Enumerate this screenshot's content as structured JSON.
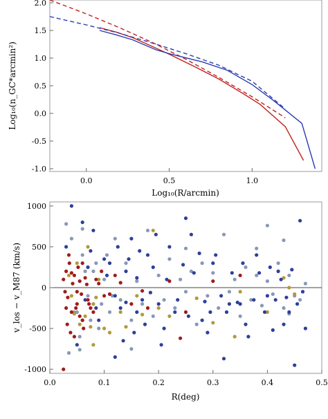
{
  "chart_data": [
    {
      "type": "line",
      "xlabel": "Log₁₀(R/arcmin)",
      "ylabel": "Log₁₀(n_GC*arcmin²)",
      "xlim": [
        -0.22,
        1.42
      ],
      "ylim": [
        -1.05,
        2.05
      ],
      "x_ticks": [
        "0.0",
        "0.5",
        "1.0"
      ],
      "x_tick_values": [
        0.0,
        0.5,
        1.0
      ],
      "y_ticks": [
        "-1.0",
        "-0.5",
        "0.0",
        "0.5",
        "1.0",
        "1.5",
        "2.0"
      ],
      "y_tick_values": [
        -1.0,
        -0.5,
        0.0,
        0.5,
        1.0,
        1.5,
        2.0
      ],
      "series": [
        {
          "color": "#c0201e",
          "style": "solid",
          "x": [
            0.08,
            0.18,
            0.28,
            0.42,
            0.5,
            0.65,
            0.8,
            0.95,
            1.05,
            1.2,
            1.31
          ],
          "y": [
            1.55,
            1.47,
            1.37,
            1.18,
            1.07,
            0.85,
            0.62,
            0.35,
            0.16,
            -0.24,
            -0.85
          ]
        },
        {
          "color": "#c0201e",
          "style": "dashed",
          "x": [
            -0.22,
            0.0,
            0.2,
            0.4,
            0.6,
            0.8,
            1.0,
            1.2
          ],
          "y": [
            2.05,
            1.8,
            1.55,
            1.28,
            0.98,
            0.65,
            0.3,
            -0.08
          ]
        },
        {
          "color": "#2a3bb0",
          "style": "solid",
          "x": [
            0.08,
            0.18,
            0.28,
            0.42,
            0.5,
            0.7,
            0.85,
            1.0,
            1.13,
            1.3,
            1.38
          ],
          "y": [
            1.5,
            1.42,
            1.33,
            1.15,
            1.08,
            0.93,
            0.78,
            0.52,
            0.23,
            -0.18,
            -1.0
          ]
        },
        {
          "color": "#2a3bb0",
          "style": "dashed",
          "x": [
            -0.22,
            0.0,
            0.2,
            0.4,
            0.6,
            0.8,
            1.0,
            1.2
          ],
          "y": [
            1.75,
            1.6,
            1.45,
            1.27,
            1.08,
            0.87,
            0.58,
            0.08
          ]
        }
      ]
    },
    {
      "type": "scatter",
      "xlabel": "R(deg)",
      "ylabel": "v_los − v_M87 (km/s)",
      "xlim": [
        0.0,
        0.5
      ],
      "ylim": [
        -1050,
        1050
      ],
      "x_ticks": [
        "0.0",
        "0.1",
        "0.2",
        "0.3",
        "0.4",
        "0.5"
      ],
      "x_tick_values": [
        0.0,
        0.1,
        0.2,
        0.3,
        0.4,
        0.5
      ],
      "y_ticks": [
        "1000",
        "500",
        "0",
        "-500",
        "-1000"
      ],
      "y_tick_values": [
        1000,
        500,
        0,
        -500,
        -1000
      ],
      "zero_line": true,
      "point_colors": {
        "red": "#a01c1c",
        "blue": "#2e3f9a",
        "grey": "#8898b8",
        "gold": "#b09a3a"
      },
      "points": {
        "red": [
          [
            0.025,
            -1000
          ],
          [
            0.03,
            200
          ],
          [
            0.033,
            -120
          ],
          [
            0.036,
            300
          ],
          [
            0.04,
            -300
          ],
          [
            0.025,
            100
          ],
          [
            0.028,
            -50
          ],
          [
            0.045,
            150
          ],
          [
            0.05,
            -200
          ],
          [
            0.055,
            80
          ],
          [
            0.06,
            -400
          ],
          [
            0.032,
            -450
          ],
          [
            0.038,
            -550
          ],
          [
            0.042,
            50
          ],
          [
            0.048,
            -250
          ],
          [
            0.052,
            250
          ],
          [
            0.058,
            -80
          ],
          [
            0.065,
            120
          ],
          [
            0.07,
            -150
          ],
          [
            0.08,
            -300
          ],
          [
            0.09,
            50
          ],
          [
            0.1,
            -100
          ],
          [
            0.12,
            150
          ],
          [
            0.15,
            -200
          ],
          [
            0.035,
            400
          ],
          [
            0.045,
            -600
          ],
          [
            0.055,
            -350
          ],
          [
            0.062,
            -500
          ],
          [
            0.03,
            -250
          ],
          [
            0.04,
            180
          ],
          [
            0.05,
            -50
          ],
          [
            0.06,
            300
          ],
          [
            0.075,
            -250
          ],
          [
            0.085,
            100
          ],
          [
            0.18,
            -250
          ],
          [
            0.22,
            80
          ],
          [
            0.25,
            -300
          ],
          [
            0.3,
            80
          ],
          [
            0.35,
            150
          ],
          [
            0.24,
            -620
          ],
          [
            0.17,
            -40
          ],
          [
            0.13,
            60
          ],
          [
            0.11,
            -80
          ],
          [
            0.095,
            200
          ],
          [
            0.072,
            -200
          ],
          [
            0.068,
            40
          ]
        ],
        "blue": [
          [
            0.04,
            1000
          ],
          [
            0.06,
            800
          ],
          [
            0.08,
            700
          ],
          [
            0.1,
            350
          ],
          [
            0.12,
            -100
          ],
          [
            0.14,
            200
          ],
          [
            0.16,
            -300
          ],
          [
            0.18,
            400
          ],
          [
            0.2,
            -200
          ],
          [
            0.22,
            500
          ],
          [
            0.25,
            850
          ],
          [
            0.28,
            -400
          ],
          [
            0.3,
            300
          ],
          [
            0.32,
            -870
          ],
          [
            0.35,
            -200
          ],
          [
            0.38,
            400
          ],
          [
            0.4,
            -100
          ],
          [
            0.42,
            200
          ],
          [
            0.44,
            -300
          ],
          [
            0.46,
            820
          ],
          [
            0.47,
            -500
          ],
          [
            0.43,
            -450
          ],
          [
            0.45,
            -950
          ],
          [
            0.41,
            -520
          ],
          [
            0.36,
            -450
          ],
          [
            0.33,
            -200
          ],
          [
            0.29,
            -550
          ],
          [
            0.26,
            650
          ],
          [
            0.23,
            -300
          ],
          [
            0.21,
            -500
          ],
          [
            0.19,
            250
          ],
          [
            0.17,
            -150
          ],
          [
            0.15,
            600
          ],
          [
            0.13,
            -250
          ],
          [
            0.11,
            300
          ],
          [
            0.09,
            -400
          ],
          [
            0.07,
            250
          ],
          [
            0.05,
            -700
          ],
          [
            0.03,
            500
          ],
          [
            0.065,
            -150
          ],
          [
            0.075,
            450
          ],
          [
            0.085,
            -250
          ],
          [
            0.105,
            150
          ],
          [
            0.125,
            500
          ],
          [
            0.135,
            -650
          ],
          [
            0.145,
            350
          ],
          [
            0.155,
            -550
          ],
          [
            0.165,
            450
          ],
          [
            0.175,
            -450
          ],
          [
            0.185,
            -60
          ],
          [
            0.195,
            650
          ],
          [
            0.205,
            -700
          ],
          [
            0.215,
            100
          ],
          [
            0.235,
            -150
          ],
          [
            0.245,
            280
          ],
          [
            0.255,
            -350
          ],
          [
            0.265,
            180
          ],
          [
            0.275,
            420
          ],
          [
            0.285,
            -170
          ],
          [
            0.295,
            -300
          ],
          [
            0.305,
            400
          ],
          [
            0.315,
            -100
          ],
          [
            0.325,
            -300
          ],
          [
            0.335,
            180
          ],
          [
            0.345,
            -180
          ],
          [
            0.355,
            300
          ],
          [
            0.365,
            -600
          ],
          [
            0.375,
            -150
          ],
          [
            0.385,
            180
          ],
          [
            0.395,
            -300
          ],
          [
            0.405,
            250
          ],
          [
            0.415,
            -150
          ],
          [
            0.425,
            100
          ],
          [
            0.435,
            -120
          ],
          [
            0.445,
            220
          ],
          [
            0.455,
            -200
          ],
          [
            0.465,
            -50
          ],
          [
            0.12,
            -850
          ],
          [
            0.14,
            -180
          ],
          [
            0.16,
            120
          ]
        ],
        "grey": [
          [
            0.03,
            780
          ],
          [
            0.04,
            600
          ],
          [
            0.05,
            -300
          ],
          [
            0.06,
            400
          ],
          [
            0.07,
            -100
          ],
          [
            0.08,
            200
          ],
          [
            0.09,
            -500
          ],
          [
            0.1,
            100
          ],
          [
            0.11,
            -300
          ],
          [
            0.12,
            600
          ],
          [
            0.13,
            -150
          ],
          [
            0.14,
            300
          ],
          [
            0.15,
            -400
          ],
          [
            0.16,
            80
          ],
          [
            0.17,
            -200
          ],
          [
            0.18,
            700
          ],
          [
            0.19,
            -350
          ],
          [
            0.2,
            150
          ],
          [
            0.21,
            -150
          ],
          [
            0.22,
            350
          ],
          [
            0.23,
            -250
          ],
          [
            0.24,
            100
          ],
          [
            0.25,
            -50
          ],
          [
            0.26,
            200
          ],
          [
            0.27,
            -450
          ],
          [
            0.28,
            300
          ],
          [
            0.29,
            -100
          ],
          [
            0.3,
            180
          ],
          [
            0.31,
            -250
          ],
          [
            0.32,
            650
          ],
          [
            0.33,
            -50
          ],
          [
            0.34,
            100
          ],
          [
            0.35,
            -350
          ],
          [
            0.36,
            250
          ],
          [
            0.37,
            -150
          ],
          [
            0.38,
            150
          ],
          [
            0.39,
            -220
          ],
          [
            0.4,
            80
          ],
          [
            0.41,
            -80
          ],
          [
            0.42,
            300
          ],
          [
            0.43,
            -250
          ],
          [
            0.44,
            150
          ],
          [
            0.45,
            -100
          ],
          [
            0.46,
            -150
          ],
          [
            0.47,
            50
          ],
          [
            0.035,
            -800
          ],
          [
            0.045,
            -300
          ],
          [
            0.055,
            -600
          ],
          [
            0.065,
            200
          ],
          [
            0.075,
            -400
          ],
          [
            0.085,
            300
          ],
          [
            0.095,
            -200
          ],
          [
            0.105,
            400
          ],
          [
            0.115,
            -100
          ],
          [
            0.4,
            760
          ],
          [
            0.43,
            580
          ],
          [
            0.38,
            480
          ],
          [
            0.06,
            720
          ],
          [
            0.055,
            -760
          ],
          [
            0.25,
            480
          ],
          [
            0.15,
            -750
          ],
          [
            0.44,
            -320
          ]
        ],
        "gold": [
          [
            0.04,
            -100
          ],
          [
            0.05,
            300
          ],
          [
            0.06,
            -400
          ],
          [
            0.07,
            500
          ],
          [
            0.08,
            -200
          ],
          [
            0.09,
            100
          ],
          [
            0.1,
            -500
          ],
          [
            0.13,
            -300
          ],
          [
            0.16,
            -100
          ],
          [
            0.2,
            -250
          ],
          [
            0.27,
            -130
          ],
          [
            0.34,
            -600
          ],
          [
            0.4,
            -300
          ],
          [
            0.44,
            0
          ],
          [
            0.43,
            120
          ],
          [
            0.45,
            -80
          ],
          [
            0.11,
            -550
          ],
          [
            0.14,
            -480
          ],
          [
            0.17,
            -330
          ],
          [
            0.08,
            -700
          ],
          [
            0.19,
            700
          ],
          [
            0.035,
            150
          ],
          [
            0.045,
            -320
          ],
          [
            0.055,
            -450
          ],
          [
            0.065,
            -350
          ],
          [
            0.075,
            -480
          ],
          [
            0.085,
            -120
          ],
          [
            0.3,
            -430
          ],
          [
            0.35,
            -50
          ],
          [
            0.22,
            -350
          ]
        ]
      }
    }
  ]
}
